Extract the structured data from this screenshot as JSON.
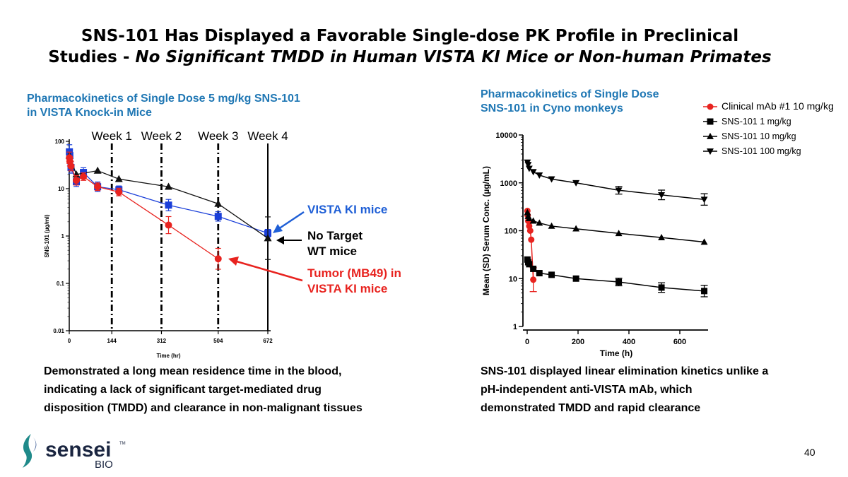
{
  "title": {
    "line1": "SNS-101 Has Displayed a Favorable Single-dose PK Profile in Preclinical",
    "line2_prefix": "Studies - ",
    "line2_italic": "No Significant TMDD in Human VISTA KI Mice or Non-human Primates"
  },
  "left": {
    "heading": [
      "Pharmacokinetics of Single Dose 5 mg/kg SNS-101",
      "in VISTA Knock-in Mice"
    ],
    "caption": [
      "Demonstrated a long mean residence time in the blood,",
      "indicating a lack of significant target-mediated drug",
      "disposition (TMDD) and clearance in non-malignant tissues"
    ]
  },
  "right": {
    "heading": [
      "Pharmacokinetics of Single Dose",
      "SNS-101 in Cyno monkeys"
    ],
    "caption": [
      "SNS-101 displayed linear elimination kinetics unlike a",
      "pH-independent anti-VISTA mAb, which",
      "demonstrated TMDD and rapid clearance"
    ]
  },
  "footer": {
    "logo_text": "sensei",
    "logo_tm": "TM",
    "logo_sub": "BIO",
    "page_number": "40"
  },
  "chart_data": [
    {
      "type": "line",
      "title": "Pharmacokinetics of Single Dose 5 mg/kg SNS-101 in VISTA Knock-in Mice",
      "xlabel": "Time (hr)",
      "ylabel": "SNS-101 (µg/ml)",
      "yscale": "log",
      "xlim": [
        0,
        672
      ],
      "ylim": [
        0.01,
        100
      ],
      "xticks": [
        0,
        144,
        312,
        504,
        672
      ],
      "yticks": [
        {
          "v": 100,
          "label": "100"
        },
        {
          "v": 10,
          "label": "10"
        },
        {
          "v": 1,
          "label": "1"
        },
        {
          "v": 0.1,
          "label": "0.1"
        },
        {
          "v": 0.01,
          "label": "0.01"
        }
      ],
      "week_markers": [
        {
          "x": 144,
          "label": "Week 1",
          "style": "dashdot"
        },
        {
          "x": 312,
          "label": "Week 2",
          "style": "dashdot"
        },
        {
          "x": 504,
          "label": "Week 3",
          "style": "dashdot"
        },
        {
          "x": 672,
          "label": "Week 4",
          "style": "solid"
        }
      ],
      "series": [
        {
          "name": "VISTA KI mice",
          "color": "#1a3fd9",
          "marker": "square",
          "x": [
            0.5,
            2,
            6,
            24,
            48,
            96,
            168,
            336,
            504,
            672
          ],
          "y": [
            60,
            50,
            28,
            14,
            22,
            11,
            9.5,
            4.5,
            2.6,
            1.15
          ],
          "err": [
            0.15,
            0.12,
            0.12,
            0.1,
            0.1,
            0.1,
            0.08,
            0.12,
            0.1,
            0.08
          ]
        },
        {
          "name": "No Target WT mice",
          "color": "#111111",
          "marker": "triangle",
          "x": [
            0.5,
            24,
            96,
            168,
            336,
            504,
            672
          ],
          "y": [
            50,
            20,
            24,
            16,
            11,
            4.8,
            0.9
          ],
          "err": [
            0,
            0,
            0,
            0,
            0,
            0,
            0.45
          ]
        },
        {
          "name": "Tumor (MB49) in VISTA KI mice",
          "color": "#e8231f",
          "marker": "circle",
          "x": [
            0.5,
            2,
            6,
            24,
            48,
            96,
            168,
            336,
            504
          ],
          "y": [
            45,
            38,
            30,
            15,
            18,
            11,
            8.5,
            1.7,
            0.33
          ],
          "err": [
            0.12,
            0.1,
            0.1,
            0.1,
            0.08,
            0.08,
            0.08,
            0.18,
            0.22
          ]
        }
      ],
      "annotations": [
        {
          "text": [
            "VISTA KI mice"
          ],
          "color": "#1f5fd6",
          "target_series": 0
        },
        {
          "text": [
            "No Target",
            "WT mice"
          ],
          "color": "#000000",
          "target_series": 1
        },
        {
          "text": [
            "Tumor (MB49) in",
            "VISTA KI mice"
          ],
          "color": "#e8231f",
          "target_series": 2
        }
      ]
    },
    {
      "type": "line",
      "title": "Pharmacokinetics of Single Dose SNS-101 in Cyno monkeys",
      "xlabel": "Time (h)",
      "ylabel": "Mean (SD) Serum Conc. (µg/mL)",
      "yscale": "log",
      "xlim": [
        0,
        700
      ],
      "ylim": [
        1,
        10000
      ],
      "xticks": [
        0,
        200,
        400,
        600
      ],
      "yticks": [
        {
          "v": 10000,
          "label": "10000"
        },
        {
          "v": 1000,
          "label": "1000"
        },
        {
          "v": 100,
          "label": "100"
        },
        {
          "v": 10,
          "label": "10"
        },
        {
          "v": 1,
          "label": "1"
        }
      ],
      "legend_position": "top-right",
      "series": [
        {
          "name": "Clinical mAb #1 10 mg/kg",
          "color": "#e8231f",
          "marker": "circle",
          "x": [
            1,
            2,
            4,
            8,
            12,
            16,
            24
          ],
          "y": [
            260,
            210,
            160,
            125,
            100,
            65,
            9.5
          ],
          "err": [
            0,
            0,
            0,
            0,
            0,
            0,
            0.25
          ]
        },
        {
          "name": "SNS-101 1 mg/kg",
          "color": "#000000",
          "marker": "square",
          "x": [
            1,
            4,
            8,
            24,
            48,
            96,
            192,
            360,
            528,
            696
          ],
          "y": [
            25,
            22,
            20,
            16,
            13,
            12,
            10,
            8.5,
            6.5,
            5.5
          ],
          "err": [
            0,
            0,
            0,
            0,
            0,
            0,
            0,
            0.08,
            0.1,
            0.12
          ]
        },
        {
          "name": "SNS-101 10 mg/kg",
          "color": "#000000",
          "marker": "triangle",
          "x": [
            1,
            4,
            8,
            24,
            48,
            96,
            192,
            360,
            528,
            696
          ],
          "y": [
            240,
            200,
            180,
            160,
            145,
            125,
            110,
            88,
            72,
            58
          ],
          "err": [
            0,
            0,
            0,
            0,
            0,
            0,
            0,
            0,
            0,
            0
          ]
        },
        {
          "name": "SNS-101 100 mg/kg",
          "color": "#000000",
          "marker": "triangle-down",
          "x": [
            1,
            4,
            8,
            24,
            48,
            96,
            192,
            360,
            528,
            696
          ],
          "y": [
            2700,
            2400,
            2000,
            1700,
            1450,
            1200,
            1000,
            700,
            560,
            450
          ],
          "err": [
            0,
            0,
            0,
            0,
            0,
            0,
            0,
            0.08,
            0.1,
            0.12
          ]
        }
      ]
    }
  ]
}
